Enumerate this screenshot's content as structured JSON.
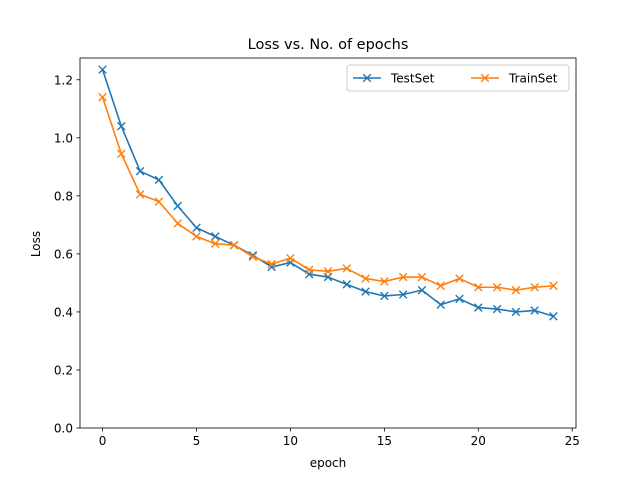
{
  "chart_data": {
    "type": "line",
    "title": "Loss vs. No. of epochs",
    "xlabel": "epoch",
    "ylabel": "Loss",
    "xlim": [
      -1.2,
      25.2
    ],
    "ylim": [
      0.0,
      1.275
    ],
    "xticks": [
      0,
      5,
      10,
      15,
      20,
      25
    ],
    "xtick_labels": [
      "0",
      "5",
      "10",
      "15",
      "20",
      "25"
    ],
    "yticks": [
      0.0,
      0.2,
      0.4,
      0.6,
      0.8,
      1.0,
      1.2
    ],
    "ytick_labels": [
      "0.0",
      "0.2",
      "0.4",
      "0.6",
      "0.8",
      "1.0",
      "1.2"
    ],
    "grid": false,
    "legend_position": "top-right",
    "marker": "x",
    "x": [
      0,
      1,
      2,
      3,
      4,
      5,
      6,
      7,
      8,
      9,
      10,
      11,
      12,
      13,
      14,
      15,
      16,
      17,
      18,
      19,
      20,
      21,
      22,
      23,
      24
    ],
    "series": [
      {
        "name": "TestSet",
        "color": "#1f77b4",
        "values": [
          1.235,
          1.04,
          0.885,
          0.855,
          0.765,
          0.69,
          0.66,
          0.63,
          0.595,
          0.555,
          0.57,
          0.53,
          0.52,
          0.495,
          0.47,
          0.455,
          0.46,
          0.475,
          0.425,
          0.445,
          0.415,
          0.41,
          0.4,
          0.405,
          0.385
        ]
      },
      {
        "name": "TrainSet",
        "color": "#ff7f0e",
        "values": [
          1.14,
          0.945,
          0.805,
          0.78,
          0.705,
          0.66,
          0.635,
          0.63,
          0.59,
          0.565,
          0.585,
          0.545,
          0.54,
          0.55,
          0.515,
          0.505,
          0.52,
          0.52,
          0.49,
          0.515,
          0.485,
          0.485,
          0.475,
          0.485,
          0.49
        ]
      }
    ]
  }
}
